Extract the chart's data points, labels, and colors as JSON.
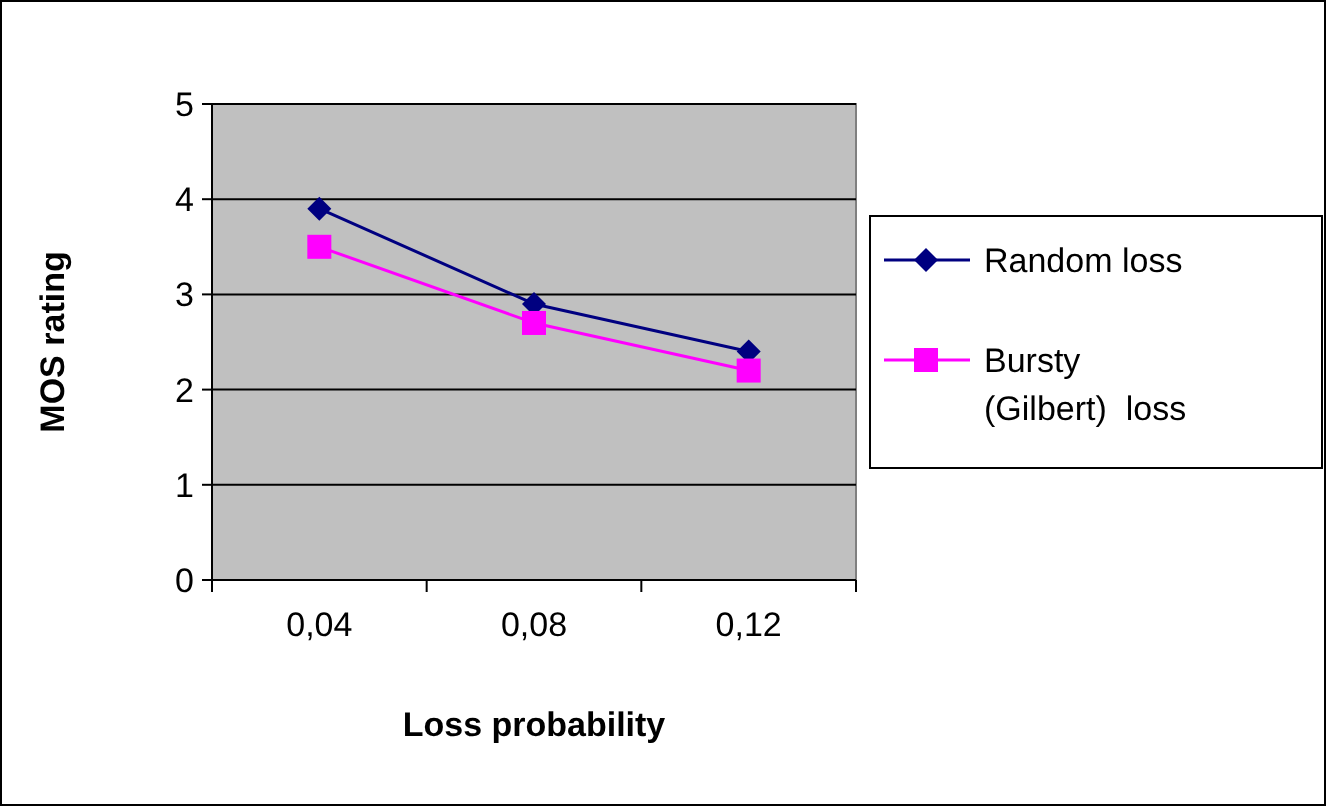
{
  "chart_data": {
    "type": "line",
    "xlabel": "Loss probability",
    "ylabel": "MOS rating",
    "categories": [
      "0,04",
      "0,08",
      "0,12"
    ],
    "series": [
      {
        "name": "Random loss",
        "color": "#000080",
        "marker": "diamond",
        "values": [
          3.9,
          2.9,
          2.4
        ]
      },
      {
        "name": "Bursty (Gilbert)  loss",
        "color": "#ff00ff",
        "marker": "square",
        "values": [
          3.5,
          2.7,
          2.2
        ]
      }
    ],
    "ylim": [
      0,
      5
    ],
    "yticks": [
      0,
      1,
      2,
      3,
      4,
      5
    ],
    "grid": "y",
    "legend": "right"
  }
}
